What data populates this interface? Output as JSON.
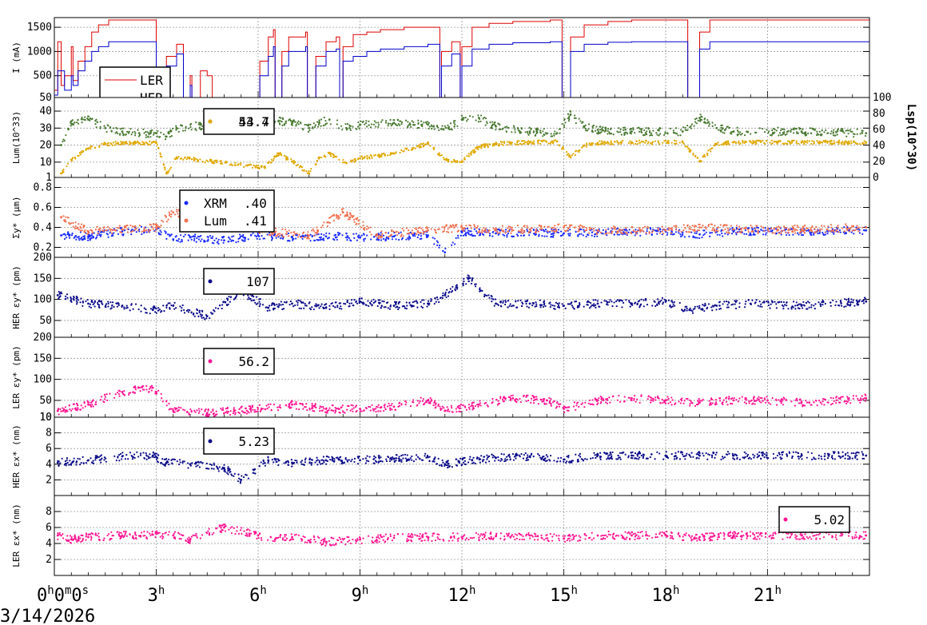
{
  "colors": {
    "ler": "#dd0000",
    "her": "#0000cc",
    "lum": "#4a7a32",
    "lsp": "#e0a800",
    "xrm": "#1a2bff",
    "lumsize": "#f07050",
    "her_emit": "#0a0a8a",
    "ler_emit": "#ff1493"
  },
  "date_label": "3/14/2026",
  "chart_data": {
    "type": "scatter",
    "x_unit": "hours",
    "xlim": [
      0,
      24
    ],
    "x_tick_labels": [
      {
        "x": 0,
        "text": "0h0m0s"
      },
      {
        "x": 3,
        "text": "3h"
      },
      {
        "x": 6,
        "text": "6h"
      },
      {
        "x": 9,
        "text": "9h"
      },
      {
        "x": 12,
        "text": "12h"
      },
      {
        "x": 15,
        "text": "15h"
      },
      {
        "x": 18,
        "text": "18h"
      },
      {
        "x": 21,
        "text": "21h"
      }
    ],
    "panels": [
      {
        "id": "current",
        "ylabel": "I (mA)",
        "ylim": [
          50,
          1700
        ],
        "yticks": [
          500,
          1000,
          1500
        ],
        "ytick_labels": [
          "500",
          "1000",
          "1500"
        ],
        "y_bottom_label": "50",
        "style": "line",
        "series": [
          {
            "name": "LER",
            "color_key": "ler",
            "x": [
              0,
              0.1,
              0.2,
              0.3,
              0.5,
              0.55,
              0.7,
              0.9,
              1.1,
              1.3,
              1.6,
              2.0,
              2.3,
              2.95,
              3.0,
              3.05,
              3.3,
              3.6,
              3.8,
              4.0,
              4.05,
              4.3,
              4.5,
              4.65,
              5.5,
              5.8,
              6.05,
              6.3,
              6.45,
              6.5,
              6.7,
              6.9,
              7.4,
              7.45,
              7.7,
              8.0,
              8.3,
              8.4,
              8.5,
              8.8,
              9.2,
              9.6,
              10.3,
              11.0,
              11.35,
              11.4,
              11.7,
              11.95,
              12.0,
              12.3,
              12.8,
              13.5,
              14.6,
              14.9,
              14.95,
              15.2,
              15.6,
              16.3,
              17.0,
              18.6,
              18.65,
              19.0,
              19.3,
              20.0,
              24
            ],
            "y": [
              200,
              1200,
              300,
              500,
              1100,
              400,
              800,
              1100,
              1400,
              1550,
              1650,
              1650,
              1650,
              1650,
              50,
              600,
              900,
              1150,
              50,
              500,
              50,
              600,
              500,
              50,
              50,
              50,
              800,
              1300,
              1450,
              50,
              1000,
              1300,
              1400,
              50,
              900,
              1200,
              1300,
              50,
              1100,
              1350,
              1400,
              1450,
              1500,
              1500,
              50,
              1000,
              1200,
              50,
              1100,
              1500,
              1580,
              1620,
              1650,
              1650,
              50,
              1300,
              1550,
              1620,
              1650,
              1650,
              50,
              1400,
              1650,
              1650,
              1650
            ]
          },
          {
            "name": "HER",
            "color_key": "her",
            "x": [
              0,
              0.1,
              0.3,
              0.5,
              0.55,
              0.7,
              0.9,
              1.1,
              1.3,
              1.6,
              2.0,
              2.95,
              3.0,
              3.05,
              3.3,
              3.6,
              3.8,
              4.0,
              4.05,
              4.65,
              5.5,
              5.8,
              6.05,
              6.3,
              6.45,
              6.5,
              6.7,
              6.9,
              7.4,
              7.45,
              7.7,
              8.0,
              8.3,
              8.4,
              8.5,
              8.8,
              9.2,
              9.6,
              10.3,
              11.0,
              11.35,
              11.4,
              11.7,
              11.95,
              12.0,
              12.3,
              12.8,
              13.5,
              14.6,
              14.9,
              14.95,
              15.2,
              15.6,
              16.3,
              17.0,
              18.6,
              18.65,
              19.0,
              19.3,
              20.0,
              24
            ],
            "y": [
              100,
              600,
              200,
              500,
              300,
              600,
              800,
              1000,
              1100,
              1200,
              1200,
              1200,
              50,
              400,
              700,
              950,
              50,
              300,
              50,
              50,
              50,
              50,
              500,
              900,
              1100,
              50,
              700,
              1000,
              1100,
              50,
              700,
              1000,
              1050,
              50,
              800,
              900,
              1000,
              1050,
              1100,
              1150,
              50,
              700,
              950,
              50,
              700,
              1050,
              1150,
              1180,
              1200,
              1200,
              50,
              1000,
              1150,
              1190,
              1200,
              1200,
              50,
              1050,
              1200,
              1200,
              1200
            ]
          }
        ]
      },
      {
        "id": "lum",
        "ylabel": "Lum(10^33)",
        "ylim": [
          1,
          48
        ],
        "yticks": [
          10,
          20,
          30,
          40
        ],
        "ytick_labels": [
          "10",
          "20",
          "30",
          "40"
        ],
        "y_bottom_label": "1",
        "right_axis": {
          "label": "Lsp(10^30)",
          "ylim": [
            0,
            100
          ],
          "ticks": [
            0,
            20,
            40,
            60,
            80,
            100
          ]
        },
        "style": "scatter",
        "series": [
          {
            "name": "Lum",
            "color_key": "lum",
            "x": [
              0.2,
              0.5,
              1.0,
              1.5,
              2.0,
              2.5,
              3.0,
              3.3,
              3.6,
              6.2,
              6.6,
              7.0,
              7.5,
              7.8,
              8.1,
              8.6,
              9.0,
              10.0,
              11.0,
              11.6,
              12.0,
              12.5,
              13.0,
              14.0,
              14.8,
              15.2,
              15.6,
              16.0,
              17.0,
              18.5,
              19.0,
              19.5,
              20.0,
              22.0,
              23.9
            ],
            "y": [
              20,
              34,
              35,
              30,
              28,
              27,
              27,
              25,
              30,
              35,
              34,
              33,
              30,
              33,
              35,
              30,
              32,
              33,
              32,
              30,
              35,
              36,
              31,
              28,
              27,
              38,
              31,
              29,
              28,
              28,
              36,
              30,
              28,
              28,
              27
            ]
          },
          {
            "name": "Lsp",
            "color_key": "lsp",
            "x": [
              0.2,
              0.5,
              1.0,
              1.5,
              2.0,
              2.5,
              3.0,
              3.3,
              3.6,
              6.2,
              6.6,
              7.0,
              7.5,
              7.8,
              8.1,
              8.6,
              9.0,
              10.0,
              11.0,
              11.6,
              12.0,
              12.5,
              13.0,
              14.0,
              14.8,
              15.2,
              15.6,
              16.0,
              17.0,
              18.5,
              19.0,
              19.5,
              20.0,
              22.0,
              23.9
            ],
            "y": [
              5,
              22,
              36,
              42,
              43,
              43,
              43,
              5,
              25,
              12,
              30,
              20,
              5,
              25,
              30,
              18,
              24,
              30,
              42,
              20,
              20,
              38,
              42,
              44,
              45,
              25,
              40,
              43,
              44,
              44,
              20,
              42,
              44,
              44,
              44
            ]
          }
        ],
        "legend_text": "53.7",
        "legend_text_overlap": "44.4"
      },
      {
        "id": "sigma",
        "ylabel": "Σy* (μm)",
        "ylim": [
          0.1,
          0.9
        ],
        "yticks": [
          0.2,
          0.4,
          0.6,
          0.8
        ],
        "ytick_labels": [
          "0.2",
          "0.4",
          "0.6",
          "0.8"
        ],
        "style": "scatter",
        "series": [
          {
            "name": "XRM",
            "color_key": "xrm",
            "x": [
              0.2,
              1.0,
              2.0,
              3.0,
              3.5,
              4.0,
              5.0,
              6.0,
              7.0,
              8.0,
              9.0,
              10.0,
              11.0,
              11.5,
              12.0,
              13.0,
              14.0,
              15.0,
              16.0,
              17.0,
              18.0,
              19.0,
              20.0,
              22.0,
              23.9
            ],
            "y": [
              0.32,
              0.31,
              0.36,
              0.38,
              0.28,
              0.3,
              0.27,
              0.32,
              0.3,
              0.31,
              0.3,
              0.31,
              0.32,
              0.15,
              0.35,
              0.34,
              0.35,
              0.34,
              0.35,
              0.35,
              0.36,
              0.33,
              0.36,
              0.36,
              0.37
            ]
          },
          {
            "name": "Lum",
            "color_key": "lumsize",
            "x": [
              0.2,
              1.0,
              2.0,
              3.0,
              3.5,
              6.5,
              7.5,
              8.5,
              9.5,
              11.0,
              12.0,
              13.0,
              14.0,
              15.0,
              16.0,
              18.0,
              19.0,
              20.0,
              22.0,
              23.9
            ],
            "y": [
              0.5,
              0.36,
              0.38,
              0.4,
              0.55,
              0.35,
              0.32,
              0.55,
              0.33,
              0.37,
              0.4,
              0.38,
              0.38,
              0.4,
              0.37,
              0.37,
              0.4,
              0.38,
              0.38,
              0.4
            ]
          }
        ],
        "legend_lines": [
          {
            "name": "XRM",
            "value": ".40"
          },
          {
            "name": "Lum",
            "value": ".41"
          }
        ]
      },
      {
        "id": "her_emit_y",
        "ylabel": "HER εy* (pm)",
        "ylim": [
          10,
          200
        ],
        "yticks": [
          50,
          100,
          150,
          200
        ],
        "ytick_labels": [
          "50",
          "100",
          "150",
          "200"
        ],
        "style": "scatter",
        "series": [
          {
            "name": "HER εy*",
            "color_key": "her_emit",
            "x": [
              0.1,
              1.0,
              2.0,
              2.9,
              3.5,
              4.5,
              5.5,
              6.3,
              7.0,
              8.0,
              9.0,
              10.0,
              11.0,
              11.5,
              12.2,
              13.0,
              14.0,
              15.0,
              16.0,
              17.0,
              18.0,
              18.7,
              19.5,
              20.5,
              22.0,
              23.9
            ],
            "y": [
              110,
              90,
              85,
              75,
              85,
              60,
              120,
              80,
              90,
              80,
              95,
              85,
              90,
              110,
              150,
              90,
              90,
              85,
              90,
              90,
              95,
              75,
              85,
              90,
              85,
              95
            ]
          }
        ],
        "legend_text": "107"
      },
      {
        "id": "ler_emit_y",
        "ylabel": "LER εy* (pm)",
        "ylim": [
          10,
          200
        ],
        "yticks": [
          10,
          50,
          100,
          150,
          200
        ],
        "ytick_labels": [
          "10",
          "50",
          "100",
          "150",
          "200"
        ],
        "style": "scatter",
        "series": [
          {
            "name": "LER εy*",
            "color_key": "ler_emit",
            "x": [
              0.1,
              1.0,
              2.0,
              2.9,
              3.5,
              4.5,
              6.1,
              7.0,
              8.0,
              9.0,
              10.0,
              11.0,
              11.5,
              12.5,
              13.5,
              14.5,
              15.0,
              16.0,
              17.0,
              18.0,
              19.0,
              20.0,
              21.0,
              22.0,
              23.9
            ],
            "y": [
              25,
              40,
              70,
              80,
              25,
              20,
              30,
              40,
              30,
              30,
              35,
              50,
              25,
              40,
              55,
              50,
              30,
              50,
              55,
              50,
              45,
              50,
              50,
              45,
              55
            ]
          }
        ],
        "legend_text": "56.2"
      },
      {
        "id": "her_emit_x",
        "ylabel": "HER εx* (nm)",
        "ylim": [
          0,
          10
        ],
        "yticks": [
          2,
          4,
          6,
          8,
          10
        ],
        "ytick_labels": [
          "2",
          "4",
          "6",
          "8",
          "10"
        ],
        "style": "scatter",
        "series": [
          {
            "name": "HER εx*",
            "color_key": "her_emit",
            "x": [
              0.1,
              1.0,
              2.0,
              2.9,
              3.3,
              4.0,
              5.0,
              5.5,
              6.3,
              7.0,
              8.0,
              9.0,
              10.0,
              11.0,
              11.5,
              12.3,
              13.0,
              14.0,
              15.0,
              16.0,
              17.0,
              18.0,
              19.0,
              20.0,
              22.0,
              23.9
            ],
            "y": [
              4.2,
              4.5,
              5.0,
              5.1,
              4.2,
              4.0,
              3.5,
              2.0,
              4.5,
              4.2,
              4.5,
              4.5,
              4.7,
              4.9,
              4.0,
              4.5,
              4.8,
              5.0,
              4.6,
              5.1,
              5.1,
              5.1,
              5.1,
              5.1,
              5.1,
              5.1
            ]
          }
        ],
        "legend_text": "5.23"
      },
      {
        "id": "ler_emit_x",
        "ylabel": "LER εx* (nm)",
        "ylim": [
          0,
          10
        ],
        "yticks": [
          2,
          4,
          6,
          8
        ],
        "ytick_labels": [
          "2",
          "4",
          "6",
          "8"
        ],
        "style": "scatter",
        "series": [
          {
            "name": "LER εx*",
            "color_key": "ler_emit",
            "x": [
              0.1,
              0.5,
              1.0,
              2.0,
              2.9,
              3.5,
              4.0,
              5.0,
              6.0,
              6.5,
              7.0,
              8.0,
              9.0,
              10.0,
              11.0,
              12.0,
              13.0,
              14.0,
              15.0,
              16.0,
              17.0,
              18.0,
              19.0,
              20.0,
              22.0,
              23.9
            ],
            "y": [
              5.0,
              4.5,
              4.8,
              5.0,
              5.1,
              5.0,
              4.5,
              6.0,
              5.0,
              4.5,
              4.8,
              4.2,
              4.5,
              4.7,
              4.8,
              4.8,
              4.9,
              5.0,
              4.6,
              5.0,
              5.0,
              5.0,
              4.8,
              5.0,
              5.0,
              5.0
            ]
          }
        ],
        "legend_text": "5.02"
      }
    ]
  }
}
